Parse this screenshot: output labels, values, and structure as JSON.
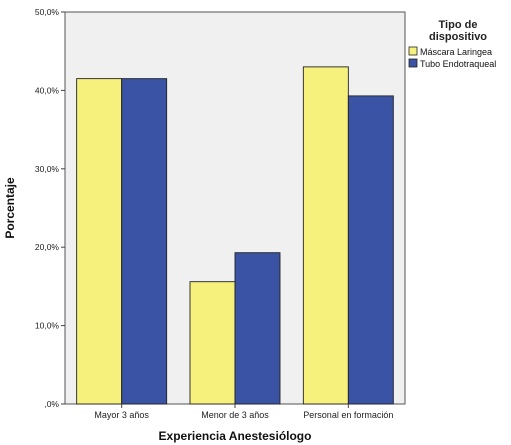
{
  "chart_data": {
    "type": "bar",
    "categories": [
      "Mayor 3 años",
      "Menor de 3 años",
      "Personal en formación"
    ],
    "series": [
      {
        "name": "Máscara Laringea",
        "values": [
          41.5,
          15.6,
          43.0
        ],
        "color": "#f6f07c"
      },
      {
        "name": "Tubo Endotraqueal",
        "values": [
          41.5,
          19.3,
          39.3
        ],
        "color": "#3a53a4"
      }
    ],
    "title": "",
    "xlabel": "Experiencia Anestesiólogo",
    "ylabel": "Porcentaje",
    "ylim": [
      0,
      50
    ],
    "yticks": [
      0,
      10,
      20,
      30,
      40,
      50
    ],
    "ytick_labels": [
      ",0%",
      "10,0%",
      "20,0%",
      "30,0%",
      "40,0%",
      "50,0%"
    ],
    "plot_background": "#f0f0f0",
    "grid": false,
    "legend": {
      "title_line1": "Tipo de",
      "title_line2": "dispositivo",
      "placement": "right"
    }
  }
}
